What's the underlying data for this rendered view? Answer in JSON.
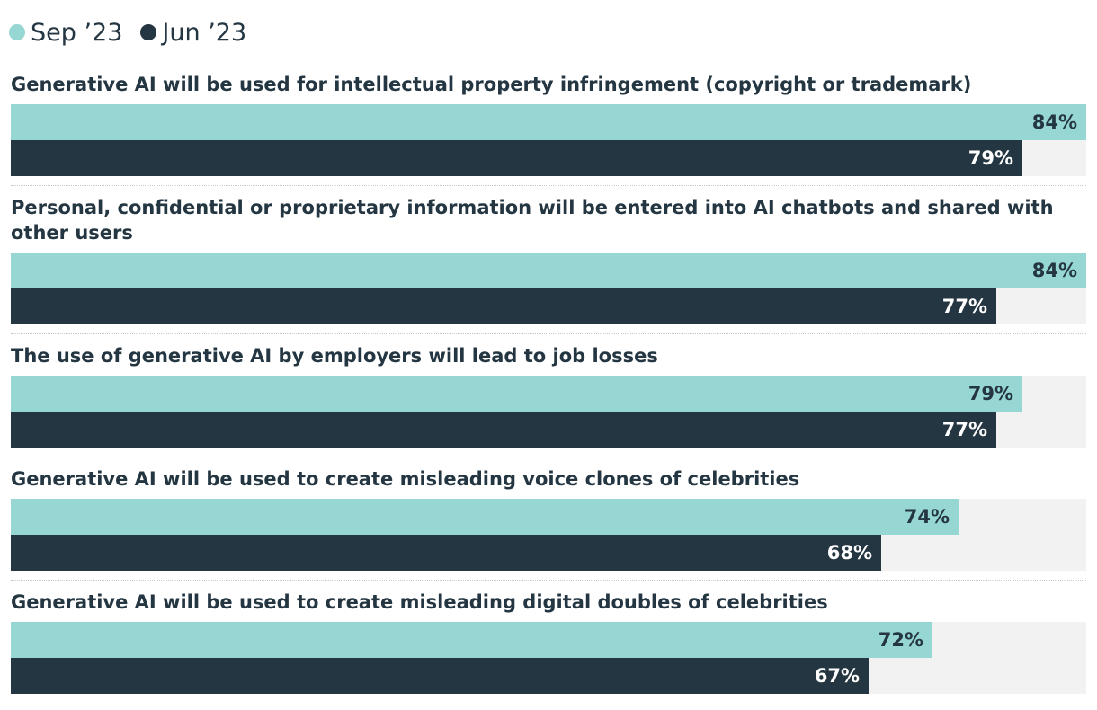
{
  "chart_data": {
    "type": "bar",
    "orientation": "horizontal",
    "categories": [
      "Generative AI will be used for intellectual property infringement (copyright or trademark)",
      "Personal, confidential or proprietary information will be entered into AI chatbots and shared with other users",
      "The use of generative AI by employers will lead to job losses",
      "Generative AI will be used to create misleading voice clones of celebrities",
      "Generative AI will be used to create misleading digital doubles of celebrities"
    ],
    "series": [
      {
        "name": "Sep ’23",
        "color": "#96d6d3",
        "label_color": "#243642",
        "values": [
          84,
          84,
          79,
          74,
          72
        ],
        "labels": [
          "84%",
          "84%",
          "79%",
          "74%",
          "72%"
        ]
      },
      {
        "name": "Jun ’23",
        "color": "#243642",
        "label_color": "#ffffff",
        "values": [
          79,
          77,
          77,
          68,
          67
        ],
        "labels": [
          "79%",
          "77%",
          "77%",
          "68%",
          "67%"
        ]
      }
    ],
    "xlim": [
      0,
      84
    ],
    "legend_position": "top-left",
    "track_color": "#f2f2f2"
  }
}
